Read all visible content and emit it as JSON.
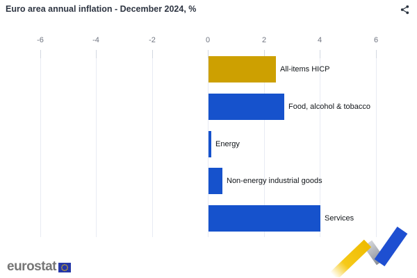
{
  "header": {
    "title": "Euro area annual inflation - December 2024, %"
  },
  "chart_data": {
    "type": "bar",
    "orientation": "horizontal",
    "title": "Euro area annual inflation - December 2024, %",
    "categories": [
      "All-items HICP",
      "Food, alcohol & tobacco",
      "Energy",
      "Non-energy industrial goods",
      "Services"
    ],
    "values": [
      2.4,
      2.7,
      0.1,
      0.5,
      4.0
    ],
    "unit": "%",
    "x_ticks": [
      -6,
      -4,
      -2,
      0,
      2,
      4,
      6
    ],
    "xlim": [
      -7,
      7
    ],
    "grid": true,
    "legend": false,
    "bar_colors": [
      "#cda001",
      "#1652cc",
      "#1652cc",
      "#1652cc",
      "#1652cc"
    ],
    "xlabel": "",
    "ylabel": ""
  },
  "footer": {
    "logo_text": "eurostat"
  },
  "colors": {
    "gold": "#cda001",
    "blue": "#1652cc",
    "grid": "#e8ebf3",
    "tick_text": "#6f7480",
    "label_text": "#101418",
    "title_text": "#2e3542",
    "logo_gray": "#767676",
    "eu_flag_blue": "#2638a8",
    "eu_star_yellow": "#ffcc00"
  }
}
